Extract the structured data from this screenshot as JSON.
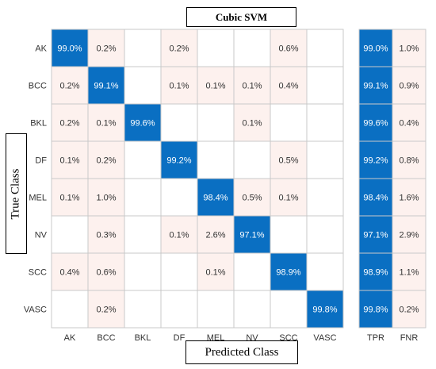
{
  "chart_data": {
    "type": "heatmap",
    "title": "Cubic SVM",
    "xlabel": "Predicted Class",
    "ylabel": "True Class",
    "classes": [
      "AK",
      "BCC",
      "BKL",
      "DF",
      "MEL",
      "NV",
      "SCC",
      "VASC"
    ],
    "matrix": [
      [
        "99.0%",
        "0.2%",
        "",
        "0.2%",
        "",
        "",
        "0.6%",
        ""
      ],
      [
        "0.2%",
        "99.1%",
        "",
        "0.1%",
        "0.1%",
        "0.1%",
        "0.4%",
        ""
      ],
      [
        "0.2%",
        "0.1%",
        "99.6%",
        "",
        "",
        "0.1%",
        "",
        ""
      ],
      [
        "0.1%",
        "0.2%",
        "",
        "99.2%",
        "",
        "",
        "0.5%",
        ""
      ],
      [
        "0.1%",
        "1.0%",
        "",
        "",
        "98.4%",
        "0.5%",
        "0.1%",
        ""
      ],
      [
        "",
        "0.3%",
        "",
        "0.1%",
        "2.6%",
        "97.1%",
        "",
        ""
      ],
      [
        "0.4%",
        "0.6%",
        "",
        "",
        "0.1%",
        "",
        "98.9%",
        ""
      ],
      [
        "",
        "0.2%",
        "",
        "",
        "",
        "",
        "",
        "99.8%"
      ]
    ],
    "summary_columns": [
      "TPR",
      "FNR"
    ],
    "summary": [
      [
        "99.0%",
        "1.0%"
      ],
      [
        "99.1%",
        "0.9%"
      ],
      [
        "99.6%",
        "0.4%"
      ],
      [
        "99.2%",
        "0.8%"
      ],
      [
        "98.4%",
        "1.6%"
      ],
      [
        "97.1%",
        "2.9%"
      ],
      [
        "98.9%",
        "1.1%"
      ],
      [
        "99.8%",
        "0.2%"
      ]
    ],
    "colors": {
      "diagonal": "#0a6fc2",
      "off_diagonal": "#fdf1ee",
      "empty": "#ffffff",
      "grid": "#c9c9c9",
      "text_dark": "#333333",
      "text_light": "#ffffff"
    }
  }
}
